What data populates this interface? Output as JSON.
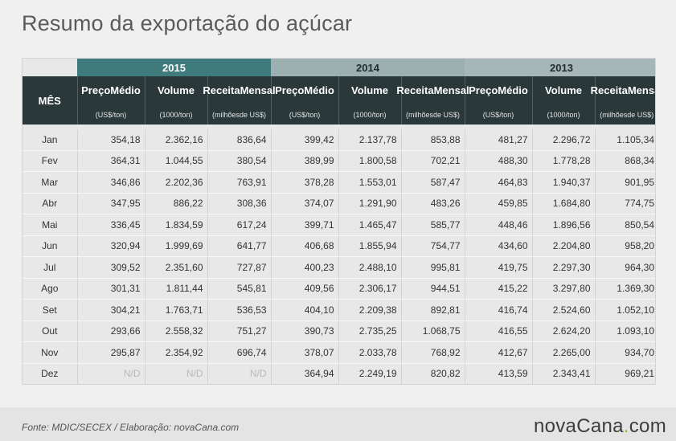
{
  "title": "Resumo da exportação do açúcar",
  "header": {
    "mes": "MÊS",
    "years": [
      "2015",
      "2014",
      "2013"
    ],
    "col_labels": [
      {
        "line1": "Preço",
        "line2": "Médio",
        "unit1": "(US$/ton)",
        "unit2": ""
      },
      {
        "line1": "Volume",
        "line2": "",
        "unit1": "(1000/ton)",
        "unit2": ""
      },
      {
        "line1": "Receita",
        "line2": "Mensal",
        "unit1": "(milhões",
        "unit2": "de US$)"
      }
    ]
  },
  "rows": [
    {
      "mes": "Jan",
      "v": [
        "354,18",
        "2.362,16",
        "836,64",
        "399,42",
        "2.137,78",
        "853,88",
        "481,27",
        "2.296,72",
        "1.105,34"
      ]
    },
    {
      "mes": "Fev",
      "v": [
        "364,31",
        "1.044,55",
        "380,54",
        "389,99",
        "1.800,58",
        "702,21",
        "488,30",
        "1.778,28",
        "868,34"
      ]
    },
    {
      "mes": "Mar",
      "v": [
        "346,86",
        "2.202,36",
        "763,91",
        "378,28",
        "1.553,01",
        "587,47",
        "464,83",
        "1.940,37",
        "901,95"
      ]
    },
    {
      "mes": "Abr",
      "v": [
        "347,95",
        "886,22",
        "308,36",
        "374,07",
        "1.291,90",
        "483,26",
        "459,85",
        "1.684,80",
        "774,75"
      ]
    },
    {
      "mes": "Mai",
      "v": [
        "336,45",
        "1.834,59",
        "617,24",
        "399,71",
        "1.465,47",
        "585,77",
        "448,46",
        "1.896,56",
        "850,54"
      ]
    },
    {
      "mes": "Jun",
      "v": [
        "320,94",
        "1.999,69",
        "641,77",
        "406,68",
        "1.855,94",
        "754,77",
        "434,60",
        "2.204,80",
        "958,20"
      ]
    },
    {
      "mes": "Jul",
      "v": [
        "309,52",
        "2.351,60",
        "727,87",
        "400,23",
        "2.488,10",
        "995,81",
        "419,75",
        "2.297,30",
        "964,30"
      ]
    },
    {
      "mes": "Ago",
      "v": [
        "301,31",
        "1.811,44",
        "545,81",
        "409,56",
        "2.306,17",
        "944,51",
        "415,22",
        "3.297,80",
        "1.369,30"
      ]
    },
    {
      "mes": "Set",
      "v": [
        "304,21",
        "1.763,71",
        "536,53",
        "404,10",
        "2.209,38",
        "892,81",
        "416,74",
        "2.524,60",
        "1.052,10"
      ]
    },
    {
      "mes": "Out",
      "v": [
        "293,66",
        "2.558,32",
        "751,27",
        "390,73",
        "2.735,25",
        "1.068,75",
        "416,55",
        "2.624,20",
        "1.093,10"
      ]
    },
    {
      "mes": "Nov",
      "v": [
        "295,87",
        "2.354,92",
        "696,74",
        "378,07",
        "2.033,78",
        "768,92",
        "412,67",
        "2.265,00",
        "934,70"
      ]
    },
    {
      "mes": "Dez",
      "v": [
        "N/D",
        "N/D",
        "N/D",
        "364,94",
        "2.249,19",
        "820,82",
        "413,59",
        "2.343,41",
        "969,21"
      ]
    }
  ],
  "footer": {
    "source": "Fonte: MDIC/SECEX / Elaboração:  novaCana.com",
    "logo_main": "novaCana",
    "logo_dot": ".",
    "logo_tld": "com"
  },
  "colors": {
    "y2015": "#3f7b7c",
    "header": "#2a3839",
    "logo_dot": "#7fc51e"
  }
}
